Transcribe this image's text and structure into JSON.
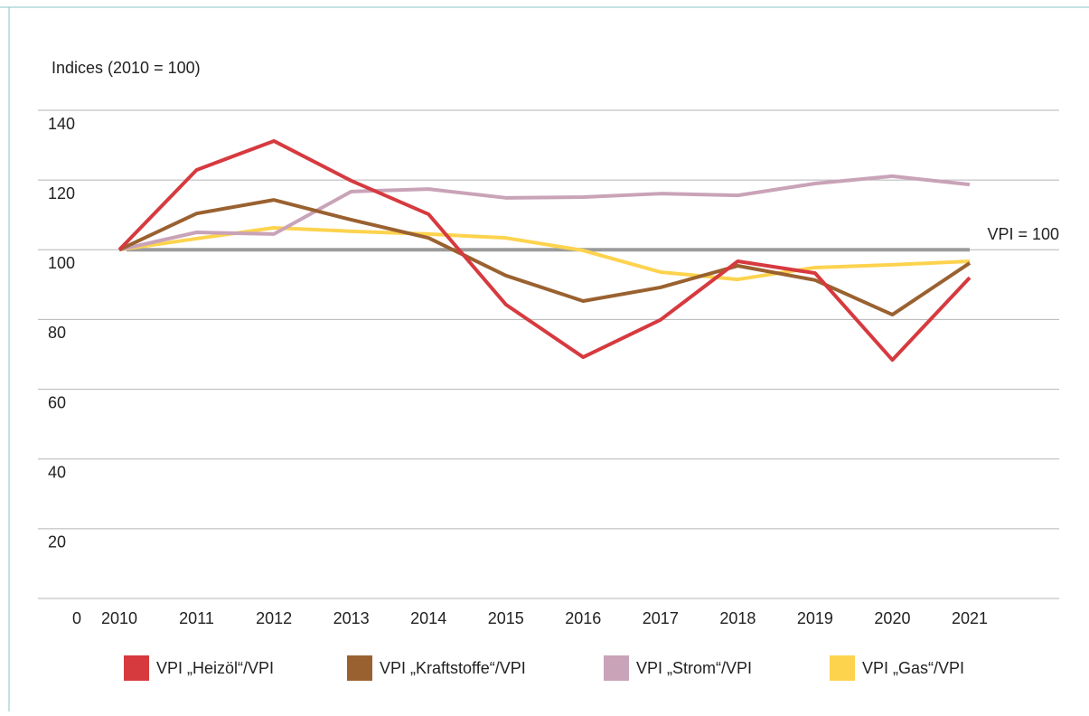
{
  "chart_data": {
    "type": "line",
    "y_axis_label": "Indices (2010 = 100)",
    "categories": [
      "2010",
      "2011",
      "2012",
      "2013",
      "2014",
      "2015",
      "2016",
      "2017",
      "2018",
      "2019",
      "2020",
      "2021"
    ],
    "series": [
      {
        "name": "VPI „Heizöl“/VPI",
        "color": "#d63a3f",
        "values": [
          100,
          122.9,
          131.2,
          119.8,
          110.2,
          84.3,
          69.2,
          79.9,
          96.7,
          93.3,
          68.4,
          92
        ]
      },
      {
        "name": "VPI „Kraftstoffe“/VPI",
        "color": "#9a6130",
        "values": [
          100,
          110.4,
          114.3,
          108.6,
          103.4,
          92.6,
          85.3,
          89.2,
          95.4,
          91.3,
          81.4,
          96.2
        ]
      },
      {
        "name": "VPI „Strom“/VPI",
        "color": "#c9a3b8",
        "values": [
          100,
          105,
          104.5,
          116.7,
          117.4,
          114.9,
          115.1,
          116.1,
          115.6,
          119,
          121.1,
          118.7
        ]
      },
      {
        "name": "VPI „Gas“/VPI",
        "color": "#fdd34e",
        "values": [
          100,
          103.2,
          106.3,
          105.3,
          104.5,
          103.4,
          99.8,
          93.6,
          91.5,
          94.9,
          95.7,
          96.7
        ]
      }
    ],
    "reference_line": {
      "value": 100,
      "label": "VPI = 100",
      "color": "#9b9b9b"
    },
    "ylim": [
      0,
      140
    ],
    "yticks": [
      0,
      20,
      40,
      60,
      80,
      100,
      120,
      140
    ],
    "grid": true
  }
}
